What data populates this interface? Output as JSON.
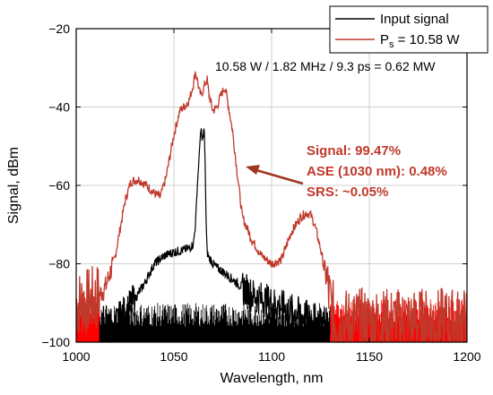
{
  "chart_data": {
    "type": "line",
    "xlabel": "Wavelength, nm",
    "ylabel": "Signal, dBm",
    "xlim": [
      1000,
      1200
    ],
    "ylim": [
      -100,
      -20
    ],
    "xticks": [
      "1000",
      "1050",
      "1100",
      "1150",
      "1200"
    ],
    "yticks": [
      "−100",
      "−80",
      "−60",
      "−40",
      "−20"
    ],
    "grid": true,
    "legend_position": "top-right",
    "legend": {
      "input": "Input signal",
      "output_prefix": "P",
      "output_sub": "s",
      "output_suffix": " = 10.58 W"
    },
    "annotation_power": "10.58 W / 1.82 MHz / 9.3 ps = 0.62 MW",
    "annotation_fractions": [
      "Signal: 99.47%",
      "ASE (1030 nm): 0.48%",
      "SRS: ~0.05%"
    ],
    "colors": {
      "input": "#000000",
      "output": "#c0392b",
      "output_noise": "#ff0000",
      "annotation": "#c0392b",
      "arrow": "#a0351e"
    },
    "series": [
      {
        "name": "Input signal",
        "x": [
          1017,
          1020,
          1023,
          1026,
          1030,
          1035,
          1040,
          1045,
          1050,
          1055,
          1058,
          1060,
          1061,
          1062,
          1063,
          1063.5,
          1064,
          1064.5,
          1065,
          1065.5,
          1066,
          1066.5,
          1067,
          1068,
          1069,
          1070,
          1072,
          1075,
          1080,
          1085,
          1090,
          1095,
          1100,
          1105,
          1110,
          1115,
          1120,
          1125,
          1130
        ],
        "y": [
          -100,
          -96,
          -93,
          -92,
          -89,
          -85,
          -80,
          -78,
          -77,
          -76.5,
          -76,
          -75,
          -70,
          -60,
          -52,
          -47,
          -46,
          -49,
          -47,
          -45,
          -55,
          -70,
          -77,
          -78.5,
          -79,
          -80,
          -81,
          -82,
          -84,
          -86,
          -88,
          -89,
          -90,
          -91,
          -92,
          -93,
          -94,
          -95,
          -96
        ]
      },
      {
        "name": "P_s = 10.58 W",
        "x": [
          1000,
          1005,
          1010,
          1015,
          1020,
          1025,
          1028,
          1032,
          1036,
          1040,
          1043,
          1046,
          1050,
          1053,
          1056,
          1058,
          1060,
          1061,
          1062,
          1063,
          1064,
          1066,
          1067,
          1068,
          1070,
          1072,
          1074,
          1076,
          1077,
          1078,
          1080,
          1082,
          1085,
          1090,
          1095,
          1100,
          1105,
          1110,
          1115,
          1118,
          1120,
          1122,
          1125,
          1128,
          1130,
          1132,
          1135,
          1140,
          1150,
          1160,
          1170,
          1180,
          1190,
          1200
        ],
        "y": [
          -90,
          -90,
          -89,
          -86,
          -78,
          -64,
          -59,
          -58.5,
          -60,
          -62,
          -63,
          -58,
          -47,
          -41,
          -39.5,
          -38,
          -34,
          -31,
          -33,
          -36,
          -37,
          -34,
          -33,
          -37,
          -41,
          -40,
          -37,
          -35,
          -37,
          -40,
          -46,
          -55,
          -68,
          -74,
          -78,
          -80,
          -79,
          -72,
          -68,
          -67,
          -67.5,
          -70,
          -76,
          -84,
          -90,
          -94,
          -95,
          -95,
          -95,
          -95,
          -95,
          -95,
          -95,
          -95
        ]
      }
    ]
  }
}
